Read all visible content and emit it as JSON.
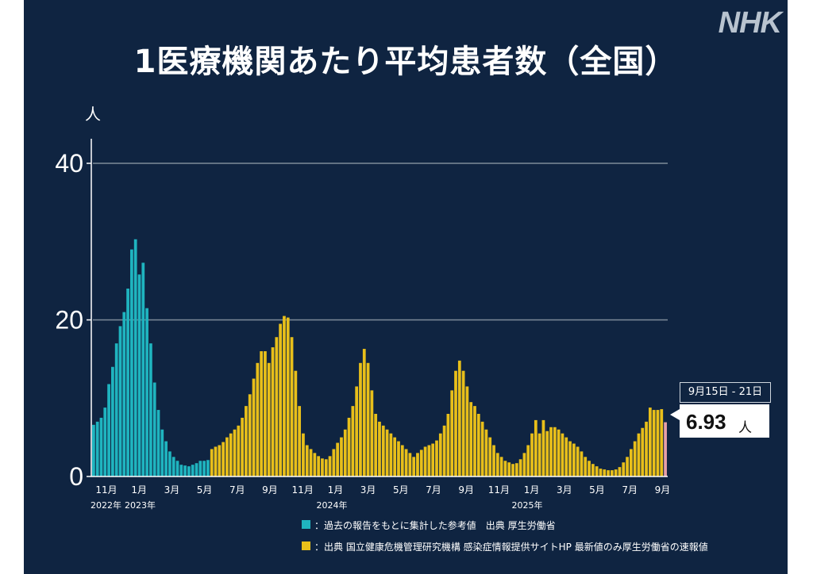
{
  "title": "1医療機関あたり平均患者数（全国）",
  "logo": "NHK",
  "y_unit": "人",
  "colors": {
    "background": "#0f2441",
    "historical": "#1fb4bf",
    "current": "#e8bf1a",
    "latest": "#e8a0a8",
    "grid": "#7f8b99"
  },
  "callout": {
    "date": "9月15日 - 21日",
    "value": "6.93",
    "unit": "人"
  },
  "legend": [
    {
      "label": "：過去の報告をもとに集計した参考値　出典 厚生労働省",
      "color": "#1fb4bf"
    },
    {
      "label": "：出典 国立健康危機管理研究機構 感染症情報提供サイトHP 最新値のみ厚生労働省の速報値",
      "color": "#e8bf1a"
    }
  ],
  "chart_data": {
    "type": "bar",
    "ylabel": "人",
    "ylim": [
      0,
      40
    ],
    "yticks": [
      0,
      20,
      40
    ],
    "grid": true,
    "month_ticks": [
      "11月",
      "1月",
      "3月",
      "5月",
      "7月",
      "9月",
      "11月",
      "1月",
      "3月",
      "5月",
      "7月",
      "9月",
      "11月",
      "1月",
      "3月",
      "5月",
      "7月",
      "9月"
    ],
    "year_labels": [
      "2022年",
      "2023年",
      "2024年",
      "2025年"
    ],
    "series": [
      {
        "name": "過去の報告をもとに集計した参考値",
        "values": [
          6.6,
          7.0,
          7.5,
          8.8,
          11.8,
          14.0,
          17.0,
          19.2,
          21.0,
          24.0,
          29.0,
          30.3,
          25.8,
          27.3,
          21.5,
          17.0,
          12.0,
          8.5,
          6.0,
          4.5,
          3.2,
          2.5,
          2.0,
          1.5,
          1.4,
          1.3,
          1.5,
          1.7,
          2.0,
          2.0,
          2.1
        ]
      },
      {
        "name": "国立健康危機管理研究機構 感染症情報提供サイト",
        "values": [
          3.5,
          3.8,
          4.0,
          4.4,
          5.0,
          5.5,
          6.0,
          6.5,
          7.5,
          9.0,
          10.5,
          12.5,
          14.5,
          16.0,
          16.0,
          14.5,
          16.5,
          17.8,
          19.5,
          20.5,
          20.3,
          17.8,
          13.5,
          9.0,
          5.5,
          4.0,
          3.5,
          3.0,
          2.6,
          2.3,
          2.2,
          2.6,
          3.5,
          4.3,
          5.0,
          6.0,
          7.5,
          9.0,
          11.5,
          14.5,
          16.3,
          14.5,
          11.0,
          8.0,
          7.0,
          6.5,
          6.0,
          5.5,
          5.0,
          4.5,
          4.0,
          3.5,
          3.0,
          2.5,
          3.0,
          3.4,
          3.8,
          4.0,
          4.2,
          4.6,
          5.5,
          6.5,
          8.0,
          11.0,
          13.5,
          14.8,
          13.5,
          11.5,
          9.5,
          9.0,
          8.0,
          7.0,
          6.0,
          5.0,
          4.0,
          3.0,
          2.5,
          2.0,
          1.8,
          1.6,
          1.7,
          2.2,
          3.0,
          4.0,
          5.5,
          7.2,
          5.5,
          7.2,
          5.8,
          6.3,
          6.3,
          6.0,
          5.5,
          5.0,
          4.5,
          4.2,
          3.8,
          3.2,
          2.5,
          2.0,
          1.6,
          1.3,
          1.0,
          0.9,
          0.8,
          0.8,
          0.9,
          1.2,
          1.8,
          2.5,
          3.5,
          4.5,
          5.5,
          6.2,
          7.0,
          8.8,
          8.5,
          8.5,
          8.6
        ]
      },
      {
        "name": "最新値（厚生労働省の速報値）",
        "values": [
          6.93
        ]
      }
    ]
  }
}
